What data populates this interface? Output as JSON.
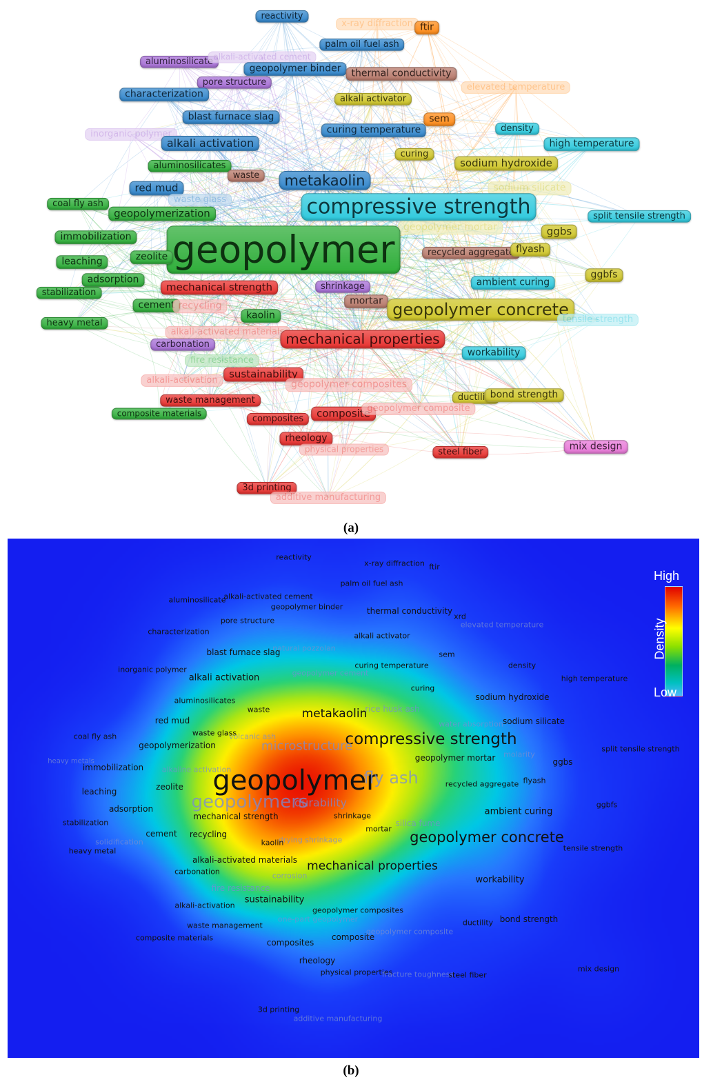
{
  "captions": {
    "a": "(a)",
    "b": "(b)"
  },
  "legend": {
    "high": "High",
    "low": "Low",
    "title": "Density"
  },
  "cluster_colors": {
    "red": "#e8322f",
    "green": "#2fae3a",
    "blue": "#3387cc",
    "yellow": "#cfc62a",
    "purple": "#a770d6",
    "cyan": "#2fc9dd",
    "orange": "#ff8c1a",
    "brown": "#b87a6b",
    "pink": "#e879d8"
  },
  "network_nodes": [
    {
      "label": "reactivity",
      "cluster": "blue"
    },
    {
      "label": "x-ray diffraction",
      "cluster": "orange",
      "faded": true
    },
    {
      "label": "ftir",
      "cluster": "orange"
    },
    {
      "label": "palm oil fuel ash",
      "cluster": "blue"
    },
    {
      "label": "aluminosilicate",
      "cluster": "purple"
    },
    {
      "label": "alkali-activated cement",
      "cluster": "purple",
      "faded": true
    },
    {
      "label": "geopolymer binder",
      "cluster": "blue"
    },
    {
      "label": "thermal conductivity",
      "cluster": "brown"
    },
    {
      "label": "pore structure",
      "cluster": "purple"
    },
    {
      "label": "elevated temperature",
      "cluster": "orange",
      "faded": true
    },
    {
      "label": "characterization",
      "cluster": "blue"
    },
    {
      "label": "alkali activator",
      "cluster": "yellow"
    },
    {
      "label": "blast furnace slag",
      "cluster": "blue"
    },
    {
      "label": "sem",
      "cluster": "orange"
    },
    {
      "label": "inorganic polymer",
      "cluster": "purple",
      "faded": true
    },
    {
      "label": "curing temperature",
      "cluster": "blue"
    },
    {
      "label": "density",
      "cluster": "cyan"
    },
    {
      "label": "alkali activation",
      "cluster": "blue"
    },
    {
      "label": "high temperature",
      "cluster": "cyan"
    },
    {
      "label": "curing",
      "cluster": "yellow"
    },
    {
      "label": "aluminosilicates",
      "cluster": "green"
    },
    {
      "label": "sodium hydroxide",
      "cluster": "yellow"
    },
    {
      "label": "waste",
      "cluster": "brown"
    },
    {
      "label": "metakaolin",
      "cluster": "blue"
    },
    {
      "label": "red mud",
      "cluster": "blue"
    },
    {
      "label": "sodium silicate",
      "cluster": "yellow",
      "faded": true
    },
    {
      "label": "waste glass",
      "cluster": "blue",
      "faded": true
    },
    {
      "label": "coal fly ash",
      "cluster": "green"
    },
    {
      "label": "compressive strength",
      "cluster": "cyan"
    },
    {
      "label": "geopolymerization",
      "cluster": "green"
    },
    {
      "label": "split tensile strength",
      "cluster": "cyan"
    },
    {
      "label": "ggbs",
      "cluster": "yellow"
    },
    {
      "label": "geopolymer mortar",
      "cluster": "yellow",
      "faded": true
    },
    {
      "label": "immobilization",
      "cluster": "green"
    },
    {
      "label": "geopolymer",
      "cluster": "green"
    },
    {
      "label": "recycled aggregate",
      "cluster": "brown"
    },
    {
      "label": "flyash",
      "cluster": "yellow"
    },
    {
      "label": "leaching",
      "cluster": "green"
    },
    {
      "label": "zeolite",
      "cluster": "green"
    },
    {
      "label": "ggbfs",
      "cluster": "yellow"
    },
    {
      "label": "adsorption",
      "cluster": "green"
    },
    {
      "label": "ambient curing",
      "cluster": "cyan"
    },
    {
      "label": "mechanical strength",
      "cluster": "red"
    },
    {
      "label": "shrinkage",
      "cluster": "purple"
    },
    {
      "label": "stabilization",
      "cluster": "green"
    },
    {
      "label": "cement",
      "cluster": "green"
    },
    {
      "label": "recycling",
      "cluster": "red",
      "faded": true
    },
    {
      "label": "mortar",
      "cluster": "brown"
    },
    {
      "label": "geopolymer concrete",
      "cluster": "yellow"
    },
    {
      "label": "heavy metal",
      "cluster": "green"
    },
    {
      "label": "kaolin",
      "cluster": "green"
    },
    {
      "label": "tensile strength",
      "cluster": "cyan",
      "faded": true
    },
    {
      "label": "alkali-activated materials",
      "cluster": "red",
      "faded": true
    },
    {
      "label": "mechanical properties",
      "cluster": "red"
    },
    {
      "label": "carbonation",
      "cluster": "purple"
    },
    {
      "label": "workability",
      "cluster": "cyan"
    },
    {
      "label": "fire resistance",
      "cluster": "green",
      "faded": true
    },
    {
      "label": "sustainability",
      "cluster": "red"
    },
    {
      "label": "alkali-activation",
      "cluster": "red",
      "faded": true
    },
    {
      "label": "geopolymer composites",
      "cluster": "red",
      "faded": true
    },
    {
      "label": "waste management",
      "cluster": "red"
    },
    {
      "label": "ductility",
      "cluster": "yellow"
    },
    {
      "label": "bond strength",
      "cluster": "yellow"
    },
    {
      "label": "composite materials",
      "cluster": "green"
    },
    {
      "label": "composites",
      "cluster": "red"
    },
    {
      "label": "composite",
      "cluster": "red"
    },
    {
      "label": "geopolymer composite",
      "cluster": "red",
      "faded": true
    },
    {
      "label": "rheology",
      "cluster": "red"
    },
    {
      "label": "physical properties",
      "cluster": "red",
      "faded": true
    },
    {
      "label": "steel fiber",
      "cluster": "red"
    },
    {
      "label": "mix design",
      "cluster": "pink"
    },
    {
      "label": "3d printing",
      "cluster": "red"
    },
    {
      "label": "additive manufacturing",
      "cluster": "red",
      "faded": true
    }
  ],
  "density_labels": [
    {
      "label": "reactivity"
    },
    {
      "label": "x-ray diffraction"
    },
    {
      "label": "ftir"
    },
    {
      "label": "palm oil fuel ash"
    },
    {
      "label": "aluminosilicate"
    },
    {
      "label": "alkali-activated cement"
    },
    {
      "label": "geopolymer binder"
    },
    {
      "label": "thermal conductivity"
    },
    {
      "label": "xrd"
    },
    {
      "label": "pore structure"
    },
    {
      "label": "elevated temperature"
    },
    {
      "label": "characterization"
    },
    {
      "label": "alkali activator"
    },
    {
      "label": "natural pozzolan"
    },
    {
      "label": "blast furnace slag"
    },
    {
      "label": "sem"
    },
    {
      "label": "curing temperature"
    },
    {
      "label": "density"
    },
    {
      "label": "inorganic polymer"
    },
    {
      "label": "geopolymer cement"
    },
    {
      "label": "alkali activation"
    },
    {
      "label": "high temperature"
    },
    {
      "label": "curing"
    },
    {
      "label": "sodium hydroxide"
    },
    {
      "label": "aluminosilicates"
    },
    {
      "label": "waste"
    },
    {
      "label": "rice husk ash"
    },
    {
      "label": "metakaolin"
    },
    {
      "label": "red mud"
    },
    {
      "label": "water absorption"
    },
    {
      "label": "sodium silicate"
    },
    {
      "label": "waste glass"
    },
    {
      "label": "volcanic ash"
    },
    {
      "label": "coal fly ash"
    },
    {
      "label": "compressive strength"
    },
    {
      "label": "geopolymerization"
    },
    {
      "label": "microstructure"
    },
    {
      "label": "split tensile strength"
    },
    {
      "label": "molarity"
    },
    {
      "label": "heavy metals"
    },
    {
      "label": "geopolymer mortar"
    },
    {
      "label": "ggbs"
    },
    {
      "label": "immobilization"
    },
    {
      "label": "alkaline activation"
    },
    {
      "label": "geopolymer"
    },
    {
      "label": "fly ash"
    },
    {
      "label": "recycled aggregate"
    },
    {
      "label": "flyash"
    },
    {
      "label": "leaching"
    },
    {
      "label": "zeolite"
    },
    {
      "label": "geopolymers"
    },
    {
      "label": "durability"
    },
    {
      "label": "adsorption"
    },
    {
      "label": "ggbfs"
    },
    {
      "label": "ambient curing"
    },
    {
      "label": "mechanical strength"
    },
    {
      "label": "shrinkage"
    },
    {
      "label": "stabilization"
    },
    {
      "label": "silica fume"
    },
    {
      "label": "mortar"
    },
    {
      "label": "cement"
    },
    {
      "label": "recycling"
    },
    {
      "label": "geopolymer concrete"
    },
    {
      "label": "solidification"
    },
    {
      "label": "drying shrinkage"
    },
    {
      "label": "kaolin"
    },
    {
      "label": "tensile strength"
    },
    {
      "label": "heavy metal"
    },
    {
      "label": "alkali-activated materials"
    },
    {
      "label": "mechanical properties"
    },
    {
      "label": "carbonation"
    },
    {
      "label": "corrosion"
    },
    {
      "label": "workability"
    },
    {
      "label": "fire resistance"
    },
    {
      "label": "sustainability"
    },
    {
      "label": "alkali-activation"
    },
    {
      "label": "geopolymer composites"
    },
    {
      "label": "one-part geopolymer"
    },
    {
      "label": "waste management"
    },
    {
      "label": "ductility"
    },
    {
      "label": "bond strength"
    },
    {
      "label": "composite materials"
    },
    {
      "label": "composites"
    },
    {
      "label": "composite"
    },
    {
      "label": "geopolymer composite"
    },
    {
      "label": "rheology"
    },
    {
      "label": "physical properties"
    },
    {
      "label": "fracture toughness"
    },
    {
      "label": "steel fiber"
    },
    {
      "label": "mix design"
    },
    {
      "label": "3d printing"
    },
    {
      "label": "additive manufacturing"
    }
  ]
}
